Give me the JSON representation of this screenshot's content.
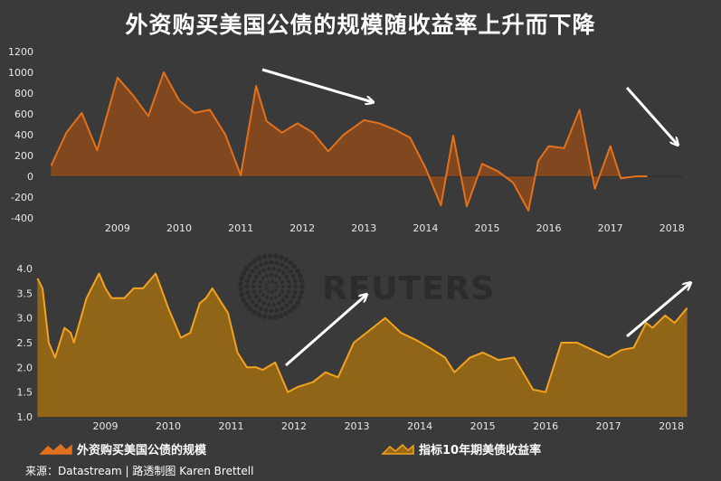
{
  "title": "外资购买美国公债的规模随收益率上升而下降",
  "source": "来源：Datastream | 路透制图 Karen Brettell",
  "watermark": "REUTERS",
  "colors": {
    "background": "#3a3a3a",
    "series1": "#e2711d",
    "series1_fill": "#8a4a1e",
    "series2": "#f2a31f",
    "series2_fill": "#9a6a14",
    "arrows": "#ffffff"
  },
  "chart_data": [
    {
      "type": "area",
      "title": "",
      "xlabel": "",
      "ylabel": "",
      "x_ticks": [
        "2009",
        "2010",
        "2011",
        "2012",
        "2013",
        "2014",
        "2015",
        "2016",
        "2017",
        "2018"
      ],
      "y_ticks": [
        "1200",
        "1000",
        "800",
        "600",
        "400",
        "200",
        "0",
        "-200",
        "-400"
      ],
      "ylim": [
        -400,
        1200
      ],
      "xlim": [
        2008.4,
        2018.9
      ],
      "grid": false,
      "series": [
        {
          "name": "外资购买美国公债的规模",
          "x": [
            2008.42,
            2008.67,
            2008.92,
            2009.17,
            2009.5,
            2009.75,
            2010.0,
            2010.25,
            2010.5,
            2010.75,
            2011.0,
            2011.25,
            2011.5,
            2011.75,
            2011.92,
            2012.17,
            2012.42,
            2012.67,
            2012.92,
            2013.17,
            2013.5,
            2013.75,
            2014.0,
            2014.25,
            2014.5,
            2014.75,
            2014.95,
            2015.17,
            2015.42,
            2015.67,
            2015.92,
            2016.17,
            2016.33,
            2016.5,
            2016.75,
            2017.0,
            2017.25,
            2017.5,
            2017.67,
            2017.92,
            2018.1
          ],
          "y": [
            100,
            420,
            610,
            250,
            950,
            780,
            580,
            1000,
            730,
            610,
            640,
            400,
            10,
            870,
            530,
            420,
            510,
            420,
            240,
            400,
            540,
            510,
            450,
            370,
            80,
            -280,
            390,
            -290,
            120,
            50,
            -60,
            -330,
            150,
            290,
            270,
            640,
            -120,
            290,
            -20,
            0,
            0
          ]
        }
      ]
    },
    {
      "type": "area",
      "title": "",
      "xlabel": "",
      "ylabel": "",
      "x_ticks": [
        "2009",
        "2010",
        "2011",
        "2012",
        "2013",
        "2014",
        "2015",
        "2016",
        "2017",
        "2018"
      ],
      "y_ticks": [
        "4.0",
        "3.5",
        "3.0",
        "2.5",
        "2.0",
        "1.5",
        "1.0"
      ],
      "ylim": [
        1.0,
        4.0
      ],
      "xlim": [
        2008.4,
        2018.9
      ],
      "grid": false,
      "series": [
        {
          "name": "指标10年期美债收益率",
          "x": [
            2008.42,
            2008.5,
            2008.6,
            2008.7,
            2008.85,
            2008.95,
            2009.0,
            2009.2,
            2009.4,
            2009.5,
            2009.6,
            2009.8,
            2009.95,
            2010.1,
            2010.3,
            2010.5,
            2010.7,
            2010.85,
            2011.0,
            2011.1,
            2011.2,
            2011.45,
            2011.6,
            2011.75,
            2011.9,
            2012.0,
            2012.2,
            2012.4,
            2012.55,
            2012.8,
            2013.0,
            2013.2,
            2013.45,
            2013.65,
            2013.95,
            2014.2,
            2014.45,
            2014.65,
            2014.9,
            2015.05,
            2015.3,
            2015.5,
            2015.75,
            2016.0,
            2016.3,
            2016.5,
            2016.75,
            2017.0,
            2017.25,
            2017.5,
            2017.7,
            2017.9,
            2018.1,
            2018.2,
            2018.4,
            2018.55,
            2018.75
          ],
          "y": [
            3.8,
            3.6,
            2.5,
            2.2,
            2.8,
            2.7,
            2.5,
            3.4,
            3.9,
            3.6,
            3.4,
            3.4,
            3.6,
            3.6,
            3.9,
            3.2,
            2.6,
            2.7,
            3.3,
            3.4,
            3.6,
            3.1,
            2.3,
            2.0,
            2.0,
            1.95,
            2.1,
            1.5,
            1.6,
            1.7,
            1.9,
            1.8,
            2.5,
            2.7,
            3.0,
            2.7,
            2.55,
            2.4,
            2.2,
            1.9,
            2.2,
            2.3,
            2.15,
            2.2,
            1.55,
            1.5,
            2.5,
            2.5,
            2.35,
            2.2,
            2.35,
            2.4,
            2.9,
            2.8,
            3.05,
            2.9,
            3.2
          ]
        }
      ]
    }
  ]
}
